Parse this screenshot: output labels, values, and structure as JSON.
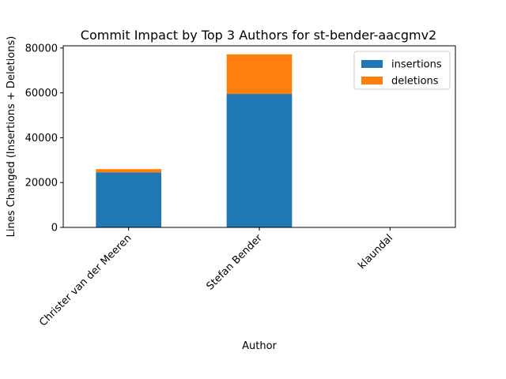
{
  "chart_data": {
    "type": "bar",
    "stacked": true,
    "title": "Commit Impact by Top 3 Authors for st-bender-aacgmv2",
    "xlabel": "Author",
    "ylabel": "Lines Changed (Insertions + Deletions)",
    "categories": [
      "Christer van der Meeren",
      "Stefan Bender",
      "klaundal"
    ],
    "series": [
      {
        "name": "insertions",
        "color": "#1f77b4",
        "values": [
          24500,
          59500,
          0
        ]
      },
      {
        "name": "deletions",
        "color": "#ff7f0e",
        "values": [
          1500,
          17700,
          0
        ]
      }
    ],
    "ylim": [
      0,
      81000
    ],
    "yticks": [
      0,
      20000,
      40000,
      60000,
      80000
    ],
    "legend_position": "top-right"
  }
}
